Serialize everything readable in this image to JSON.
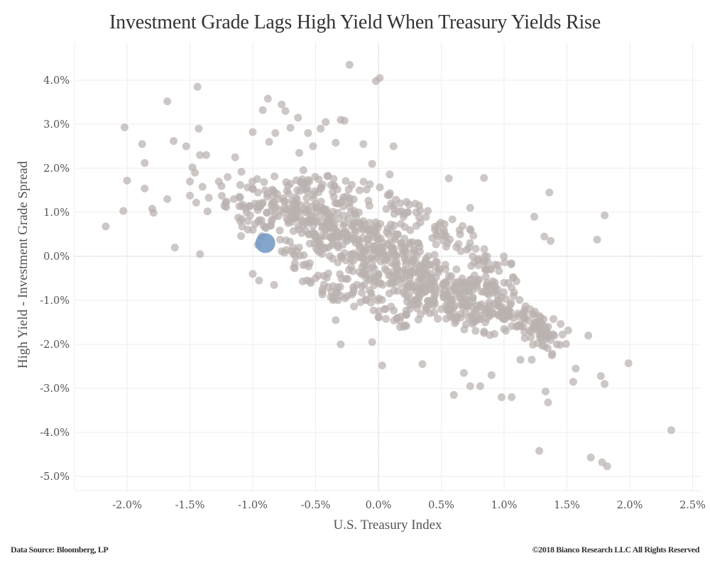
{
  "chart_data": {
    "type": "scatter",
    "title": "Investment Grade Lags High Yield When Treasury Yields Rise",
    "xlabel": "U.S. Treasury Index",
    "ylabel": "High Yield - Investment Grade Spread",
    "xlim": [
      -2.4,
      2.55
    ],
    "ylim": [
      -5.3,
      4.85
    ],
    "xticks": [
      -2.0,
      -1.5,
      -1.0,
      -0.5,
      0.0,
      0.5,
      1.0,
      1.5,
      2.0,
      2.5
    ],
    "xtick_labels": [
      "-2.0%",
      "-1.5%",
      "-1.0%",
      "-0.5%",
      "0.0%",
      "0.5%",
      "1.0%",
      "1.5%",
      "2.0%",
      "2.5%"
    ],
    "yticks": [
      4.0,
      3.0,
      2.0,
      1.0,
      0.0,
      -1.0,
      -2.0,
      -3.0,
      -4.0,
      -5.0
    ],
    "ytick_labels": [
      "4.0%",
      "3.0%",
      "2.0%",
      "1.0%",
      "0.0%",
      "-1.0%",
      "-2.0%",
      "-3.0%",
      "-4.0%",
      "-5.0%"
    ],
    "grid": true,
    "zero_lines": true,
    "colors": {
      "points": "#bab1ae",
      "highlight": "#6f96c4"
    },
    "highlight_point": {
      "x": -0.9,
      "y": 0.3
    },
    "outliers": [
      [
        -2.17,
        0.68
      ],
      [
        -2.03,
        1.03
      ],
      [
        -2.02,
        2.93
      ],
      [
        -2.0,
        1.72
      ],
      [
        -1.88,
        2.55
      ],
      [
        -1.86,
        2.12
      ],
      [
        -1.86,
        1.54
      ],
      [
        -1.8,
        1.08
      ],
      [
        -1.79,
        0.99
      ],
      [
        -1.68,
        1.3
      ],
      [
        -1.68,
        3.52
      ],
      [
        -1.63,
        2.62
      ],
      [
        -1.62,
        0.2
      ],
      [
        -1.53,
        2.5
      ],
      [
        -1.5,
        1.38
      ],
      [
        -1.5,
        1.7
      ],
      [
        -1.48,
        2.02
      ],
      [
        -1.46,
        1.9
      ],
      [
        -1.45,
        1.22
      ],
      [
        -1.44,
        3.85
      ],
      [
        -1.43,
        2.9
      ],
      [
        -1.42,
        2.3
      ],
      [
        -1.4,
        1.58
      ],
      [
        -1.37,
        2.3
      ],
      [
        -1.36,
        1.02
      ],
      [
        -1.35,
        1.33
      ],
      [
        -1.27,
        1.7
      ],
      [
        -1.42,
        0.05
      ],
      [
        -1.2,
        1.8
      ],
      [
        -1.14,
        2.25
      ],
      [
        -1.1,
        1.62
      ],
      [
        -1.1,
        0.8
      ],
      [
        -1.09,
        1.92
      ],
      [
        -1.02,
        0.93
      ],
      [
        -1.0,
        2.82
      ],
      [
        -1.0,
        1.54
      ],
      [
        -0.96,
        1.05
      ],
      [
        -0.96,
        0.26
      ],
      [
        -0.92,
        3.32
      ],
      [
        -0.88,
        3.58
      ],
      [
        -0.87,
        2.6
      ],
      [
        -0.82,
        2.8
      ],
      [
        -0.77,
        3.45
      ],
      [
        -0.74,
        3.3
      ],
      [
        -0.7,
        2.92
      ],
      [
        -0.64,
        3.15
      ],
      [
        -0.63,
        2.35
      ],
      [
        -0.56,
        2.8
      ],
      [
        -0.52,
        2.5
      ],
      [
        -0.46,
        2.9
      ],
      [
        -0.42,
        3.05
      ],
      [
        -0.34,
        2.58
      ],
      [
        -0.3,
        3.1
      ],
      [
        -0.27,
        3.08
      ],
      [
        -0.23,
        4.35
      ],
      [
        -0.02,
        3.98
      ],
      [
        0.01,
        4.05
      ],
      [
        -0.12,
        2.55
      ],
      [
        0.12,
        2.5
      ],
      [
        -0.05,
        2.1
      ],
      [
        0.09,
        1.86
      ],
      [
        0.56,
        1.77
      ],
      [
        0.84,
        1.78
      ],
      [
        0.73,
        1.1
      ],
      [
        1.36,
        1.45
      ],
      [
        1.32,
        0.45
      ],
      [
        1.37,
        0.35
      ],
      [
        1.8,
        0.93
      ],
      [
        1.74,
        0.38
      ],
      [
        1.24,
        0.9
      ],
      [
        -1.0,
        -0.4
      ],
      [
        -0.95,
        -0.55
      ],
      [
        -0.83,
        -0.65
      ],
      [
        -0.34,
        -1.45
      ],
      [
        -0.3,
        -2.0
      ],
      [
        -0.05,
        -1.95
      ],
      [
        0.03,
        -2.48
      ],
      [
        0.2,
        -1.6
      ],
      [
        0.35,
        -2.45
      ],
      [
        0.6,
        -3.15
      ],
      [
        0.68,
        -2.65
      ],
      [
        0.73,
        -2.95
      ],
      [
        0.81,
        -2.95
      ],
      [
        0.9,
        -2.7
      ],
      [
        0.98,
        -3.2
      ],
      [
        1.06,
        -3.2
      ],
      [
        1.13,
        -2.35
      ],
      [
        1.22,
        -2.35
      ],
      [
        1.28,
        -4.42
      ],
      [
        1.33,
        -3.07
      ],
      [
        1.35,
        -3.32
      ],
      [
        1.38,
        -2.25
      ],
      [
        1.42,
        -2.0
      ],
      [
        1.55,
        -2.85
      ],
      [
        1.57,
        -2.55
      ],
      [
        1.67,
        -1.8
      ],
      [
        1.69,
        -4.57
      ],
      [
        1.77,
        -2.72
      ],
      [
        1.78,
        -4.68
      ],
      [
        1.8,
        -2.9
      ],
      [
        1.82,
        -4.77
      ],
      [
        1.99,
        -2.43
      ],
      [
        2.33,
        -3.95
      ]
    ],
    "cluster": {
      "description_of_band": "dense negative-correlation core",
      "points": [
        [
          -0.8,
          1.3
        ],
        [
          -0.75,
          1.1
        ],
        [
          -0.7,
          0.9
        ],
        [
          -0.65,
          1.2
        ],
        [
          -0.6,
          0.7
        ],
        [
          -0.58,
          1.0
        ],
        [
          -0.55,
          0.5
        ],
        [
          -0.52,
          1.4
        ],
        [
          -0.5,
          0.8
        ],
        [
          -0.48,
          0.3
        ],
        [
          -0.45,
          1.1
        ],
        [
          -0.42,
          0.6
        ],
        [
          -0.4,
          0.2
        ],
        [
          -0.38,
          0.9
        ],
        [
          -0.35,
          0.45
        ],
        [
          -0.33,
          1.2
        ],
        [
          -0.3,
          0.0
        ],
        [
          -0.28,
          0.7
        ],
        [
          -0.25,
          0.35
        ],
        [
          -0.22,
          1.0
        ],
        [
          -0.2,
          -0.1
        ],
        [
          -0.18,
          0.55
        ],
        [
          -0.15,
          0.2
        ],
        [
          -0.12,
          0.8
        ],
        [
          -0.1,
          -0.3
        ],
        [
          -0.08,
          0.4
        ],
        [
          -0.05,
          0.0
        ],
        [
          -0.03,
          0.65
        ],
        [
          0.0,
          -0.4
        ],
        [
          0.02,
          0.2
        ],
        [
          0.05,
          -0.1
        ],
        [
          0.08,
          0.5
        ],
        [
          0.1,
          -0.6
        ],
        [
          0.12,
          0.1
        ],
        [
          0.15,
          -0.3
        ],
        [
          0.18,
          0.3
        ],
        [
          0.2,
          -0.8
        ],
        [
          0.22,
          -0.1
        ],
        [
          0.25,
          -0.5
        ],
        [
          0.28,
          0.15
        ],
        [
          0.3,
          -1.0
        ],
        [
          0.32,
          -0.35
        ],
        [
          0.35,
          -0.7
        ],
        [
          0.38,
          -0.05
        ],
        [
          0.4,
          -1.1
        ],
        [
          0.42,
          -0.55
        ],
        [
          0.45,
          -0.85
        ],
        [
          0.48,
          -0.3
        ],
        [
          0.5,
          -1.2
        ],
        [
          0.52,
          -0.65
        ],
        [
          0.55,
          -1.0
        ],
        [
          0.58,
          -0.45
        ],
        [
          0.6,
          -1.3
        ],
        [
          0.63,
          -0.8
        ],
        [
          0.66,
          -1.1
        ],
        [
          0.7,
          -0.6
        ],
        [
          0.72,
          -1.4
        ],
        [
          0.75,
          -0.95
        ],
        [
          0.78,
          -1.2
        ],
        [
          0.82,
          -0.8
        ],
        [
          0.85,
          -1.5
        ],
        [
          0.88,
          -1.05
        ],
        [
          0.92,
          -1.3
        ],
        [
          0.95,
          -0.9
        ],
        [
          1.0,
          -1.4
        ],
        [
          1.05,
          -1.1
        ],
        [
          1.1,
          -1.6
        ],
        [
          1.15,
          -1.3
        ],
        [
          1.2,
          -1.7
        ],
        [
          1.25,
          -1.5
        ],
        [
          1.3,
          -1.9
        ],
        [
          1.35,
          -1.6
        ],
        [
          1.4,
          -1.8
        ],
        [
          -0.9,
          1.5
        ],
        [
          -0.85,
          0.8
        ],
        [
          -0.95,
          1.2
        ],
        [
          -1.0,
          0.6
        ],
        [
          -1.05,
          1.0
        ],
        [
          -1.15,
          1.3
        ],
        [
          -0.68,
          0.2
        ],
        [
          -0.6,
          -0.2
        ],
        [
          -0.5,
          -0.5
        ],
        [
          -0.4,
          -0.7
        ],
        [
          -0.3,
          -0.9
        ],
        [
          -0.2,
          -0.7
        ],
        [
          -0.1,
          -1.0
        ],
        [
          0.05,
          -1.2
        ],
        [
          0.15,
          -1.4
        ],
        [
          0.25,
          -1.2
        ],
        [
          0.3,
          1.0
        ],
        [
          0.45,
          0.6
        ],
        [
          0.55,
          0.3
        ],
        [
          0.65,
          0.5
        ],
        [
          0.75,
          0.0
        ],
        [
          0.85,
          -0.3
        ],
        [
          0.95,
          -0.2
        ],
        [
          1.0,
          -0.6
        ],
        [
          0.2,
          0.9
        ],
        [
          0.1,
          1.2
        ],
        [
          -0.15,
          1.5
        ],
        [
          -0.35,
          1.6
        ],
        [
          -0.55,
          1.7
        ],
        [
          -0.72,
          1.6
        ]
      ]
    }
  },
  "footer": {
    "source": "Data Source: Bloomberg, LP",
    "copyright": "©2018 Bianco Research LLC   All Rights Reserved"
  }
}
